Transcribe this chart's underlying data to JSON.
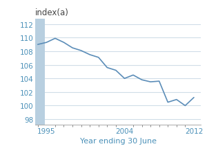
{
  "title": "index(a)",
  "xlabel": "Year ending 30 June",
  "xlim": [
    1993.7,
    2012.8
  ],
  "ylim": [
    97.2,
    112.8
  ],
  "yticks": [
    98,
    100,
    102,
    104,
    106,
    108,
    110,
    112
  ],
  "xticks": [
    1995,
    2004,
    2012
  ],
  "line_color": "#5b8db8",
  "shaded_bar_color": "#b8cfe0",
  "shaded_x_start": 1993.7,
  "shaded_x_end": 1994.8,
  "background_color": "#ffffff",
  "grid_color": "#d0dde8",
  "label_color": "#4a90b8",
  "tick_color": "#888888",
  "title_color": "#444444",
  "years": [
    1994,
    1995,
    1996,
    1997,
    1998,
    1999,
    2000,
    2001,
    2002,
    2003,
    2004,
    2005,
    2006,
    2007,
    2008,
    2009,
    2010,
    2011,
    2012
  ],
  "values": [
    109.0,
    109.3,
    109.9,
    109.3,
    108.5,
    108.1,
    107.5,
    107.1,
    105.6,
    105.2,
    104.0,
    104.5,
    103.8,
    103.5,
    103.6,
    100.5,
    100.9,
    100.0,
    101.2
  ]
}
